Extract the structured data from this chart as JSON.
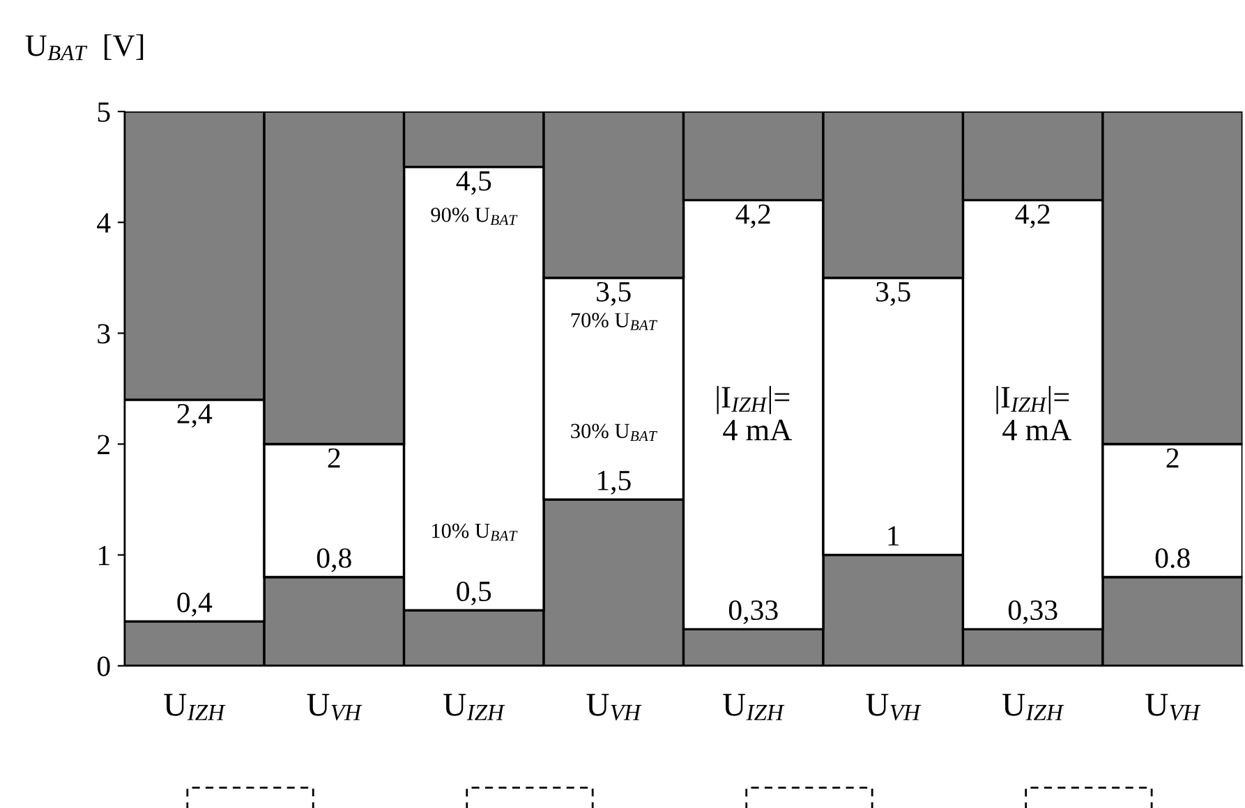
{
  "chart_data": {
    "type": "bar",
    "stacked": true,
    "ylabel": "U$_{BAT}$  [V]",
    "categories": [
      "U$_{IZH}$",
      "U$_{VH}$",
      "U$_{IZH}$",
      "U$_{VH}$",
      "U$_{IZH}$",
      "U$_{VH}$",
      "U$_{IZH}$",
      "U$_{VH}$"
    ],
    "series": [
      {
        "color": "#808080",
        "values": [
          0.4,
          0.8,
          0.5,
          1.5,
          0.33,
          1.0,
          0.33,
          0.8
        ],
        "value_labels": [
          "0,4",
          "0,8",
          "0,5",
          "1,5",
          "0,33",
          "1",
          "0,33",
          "0.8"
        ]
      },
      {
        "color": "#ffffff",
        "values": [
          2.0,
          1.2,
          4.0,
          2.0,
          3.87,
          2.5,
          3.87,
          1.2
        ]
      },
      {
        "color": "#808080",
        "values": [
          2.6,
          3.0,
          0.5,
          1.5,
          0.8,
          1.5,
          0.8,
          3.0
        ]
      }
    ],
    "ylim": [
      0,
      5
    ],
    "yticks": [
      0,
      1,
      2,
      3,
      4,
      5
    ],
    "grid": false,
    "legend": false,
    "annotations": [
      "2,4",
      "2",
      "4,5",
      "3,5",
      "4,2",
      "3,5",
      "4,2",
      "2",
      "90% U$_{BAT}$",
      "10% U$_{BAT}$",
      "70% U$_{BAT}$",
      "30% U$_{BAT}$",
      "|I$_{IZH}$|=\n 4 mA",
      "|I$_{IZH}$|=\n 4 mA"
    ]
  }
}
